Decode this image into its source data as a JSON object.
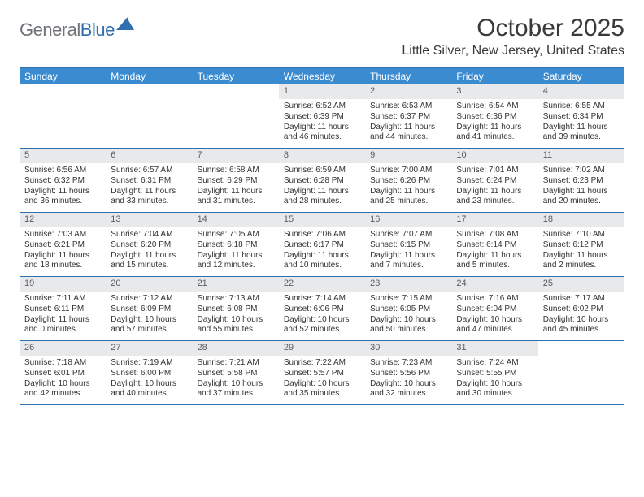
{
  "logo": {
    "text_gray": "General",
    "text_blue": "Blue"
  },
  "header": {
    "month_title": "October 2025",
    "location": "Little Silver, New Jersey, United States"
  },
  "colors": {
    "header_bar": "#3b8bd1",
    "rule": "#2f6fb0",
    "daynum_bg": "#e8e9eb",
    "text": "#333333",
    "logo_gray": "#6f7378",
    "logo_blue": "#2f6fb0"
  },
  "weekdays": [
    "Sunday",
    "Monday",
    "Tuesday",
    "Wednesday",
    "Thursday",
    "Friday",
    "Saturday"
  ],
  "weeks": [
    [
      null,
      null,
      null,
      {
        "n": "1",
        "sr": "6:52 AM",
        "ss": "6:39 PM",
        "dl": "11 hours and 46 minutes."
      },
      {
        "n": "2",
        "sr": "6:53 AM",
        "ss": "6:37 PM",
        "dl": "11 hours and 44 minutes."
      },
      {
        "n": "3",
        "sr": "6:54 AM",
        "ss": "6:36 PM",
        "dl": "11 hours and 41 minutes."
      },
      {
        "n": "4",
        "sr": "6:55 AM",
        "ss": "6:34 PM",
        "dl": "11 hours and 39 minutes."
      }
    ],
    [
      {
        "n": "5",
        "sr": "6:56 AM",
        "ss": "6:32 PM",
        "dl": "11 hours and 36 minutes."
      },
      {
        "n": "6",
        "sr": "6:57 AM",
        "ss": "6:31 PM",
        "dl": "11 hours and 33 minutes."
      },
      {
        "n": "7",
        "sr": "6:58 AM",
        "ss": "6:29 PM",
        "dl": "11 hours and 31 minutes."
      },
      {
        "n": "8",
        "sr": "6:59 AM",
        "ss": "6:28 PM",
        "dl": "11 hours and 28 minutes."
      },
      {
        "n": "9",
        "sr": "7:00 AM",
        "ss": "6:26 PM",
        "dl": "11 hours and 25 minutes."
      },
      {
        "n": "10",
        "sr": "7:01 AM",
        "ss": "6:24 PM",
        "dl": "11 hours and 23 minutes."
      },
      {
        "n": "11",
        "sr": "7:02 AM",
        "ss": "6:23 PM",
        "dl": "11 hours and 20 minutes."
      }
    ],
    [
      {
        "n": "12",
        "sr": "7:03 AM",
        "ss": "6:21 PM",
        "dl": "11 hours and 18 minutes."
      },
      {
        "n": "13",
        "sr": "7:04 AM",
        "ss": "6:20 PM",
        "dl": "11 hours and 15 minutes."
      },
      {
        "n": "14",
        "sr": "7:05 AM",
        "ss": "6:18 PM",
        "dl": "11 hours and 12 minutes."
      },
      {
        "n": "15",
        "sr": "7:06 AM",
        "ss": "6:17 PM",
        "dl": "11 hours and 10 minutes."
      },
      {
        "n": "16",
        "sr": "7:07 AM",
        "ss": "6:15 PM",
        "dl": "11 hours and 7 minutes."
      },
      {
        "n": "17",
        "sr": "7:08 AM",
        "ss": "6:14 PM",
        "dl": "11 hours and 5 minutes."
      },
      {
        "n": "18",
        "sr": "7:10 AM",
        "ss": "6:12 PM",
        "dl": "11 hours and 2 minutes."
      }
    ],
    [
      {
        "n": "19",
        "sr": "7:11 AM",
        "ss": "6:11 PM",
        "dl": "11 hours and 0 minutes."
      },
      {
        "n": "20",
        "sr": "7:12 AM",
        "ss": "6:09 PM",
        "dl": "10 hours and 57 minutes."
      },
      {
        "n": "21",
        "sr": "7:13 AM",
        "ss": "6:08 PM",
        "dl": "10 hours and 55 minutes."
      },
      {
        "n": "22",
        "sr": "7:14 AM",
        "ss": "6:06 PM",
        "dl": "10 hours and 52 minutes."
      },
      {
        "n": "23",
        "sr": "7:15 AM",
        "ss": "6:05 PM",
        "dl": "10 hours and 50 minutes."
      },
      {
        "n": "24",
        "sr": "7:16 AM",
        "ss": "6:04 PM",
        "dl": "10 hours and 47 minutes."
      },
      {
        "n": "25",
        "sr": "7:17 AM",
        "ss": "6:02 PM",
        "dl": "10 hours and 45 minutes."
      }
    ],
    [
      {
        "n": "26",
        "sr": "7:18 AM",
        "ss": "6:01 PM",
        "dl": "10 hours and 42 minutes."
      },
      {
        "n": "27",
        "sr": "7:19 AM",
        "ss": "6:00 PM",
        "dl": "10 hours and 40 minutes."
      },
      {
        "n": "28",
        "sr": "7:21 AM",
        "ss": "5:58 PM",
        "dl": "10 hours and 37 minutes."
      },
      {
        "n": "29",
        "sr": "7:22 AM",
        "ss": "5:57 PM",
        "dl": "10 hours and 35 minutes."
      },
      {
        "n": "30",
        "sr": "7:23 AM",
        "ss": "5:56 PM",
        "dl": "10 hours and 32 minutes."
      },
      {
        "n": "31",
        "sr": "7:24 AM",
        "ss": "5:55 PM",
        "dl": "10 hours and 30 minutes."
      },
      null
    ]
  ],
  "labels": {
    "sunrise_prefix": "Sunrise: ",
    "sunset_prefix": "Sunset: ",
    "daylight_prefix": "Daylight: "
  }
}
